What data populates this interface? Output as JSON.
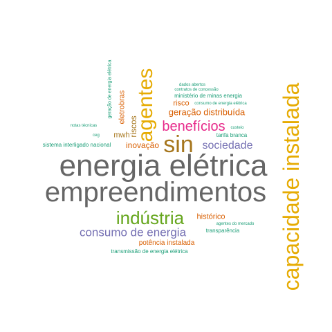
{
  "colors": {
    "gray": "#666666",
    "gold": "#e6ab02",
    "green": "#66a61e",
    "orange": "#d95f02",
    "purple": "#7570b3",
    "teal": "#1b9e77",
    "magenta": "#e7298a",
    "brown": "#a6761d"
  },
  "words": [
    {
      "text": "energia elétrica",
      "color": "gray"
    },
    {
      "text": "empreendimentos",
      "color": "gray"
    },
    {
      "text": "capacidade instalada",
      "color": "gold"
    },
    {
      "text": "sin",
      "color": "brown"
    },
    {
      "text": "agentes",
      "color": "gold"
    },
    {
      "text": "indústria",
      "color": "green"
    },
    {
      "text": "benefícios",
      "color": "magenta"
    },
    {
      "text": "consumo de energia",
      "color": "purple"
    },
    {
      "text": "sociedade",
      "color": "purple"
    },
    {
      "text": "geração distribuída",
      "color": "orange"
    },
    {
      "text": "inovação",
      "color": "orange"
    },
    {
      "text": "riscos",
      "color": "brown"
    },
    {
      "text": "eletrobras",
      "color": "orange"
    },
    {
      "text": "mwh",
      "color": "brown"
    },
    {
      "text": "risco",
      "color": "orange"
    },
    {
      "text": "histórico",
      "color": "orange"
    },
    {
      "text": "potência instalada",
      "color": "orange"
    },
    {
      "text": "ministério de minas energia",
      "color": "teal"
    },
    {
      "text": "tarifa branca",
      "color": "teal"
    },
    {
      "text": "transparência",
      "color": "teal"
    },
    {
      "text": "transmissão de energia elétrica",
      "color": "teal"
    },
    {
      "text": "sistema interligado nacional",
      "color": "teal"
    },
    {
      "text": "geração de energia elétrica",
      "color": "teal"
    },
    {
      "text": "dados abertos",
      "color": "teal"
    },
    {
      "text": "contratos de concessão",
      "color": "teal"
    },
    {
      "text": "consumo de energia elétrica",
      "color": "teal"
    },
    {
      "text": "notas técnicas",
      "color": "teal"
    },
    {
      "text": "ceg",
      "color": "teal"
    },
    {
      "text": "custeio",
      "color": "teal"
    },
    {
      "text": "agentes do mercado",
      "color": "teal"
    }
  ]
}
